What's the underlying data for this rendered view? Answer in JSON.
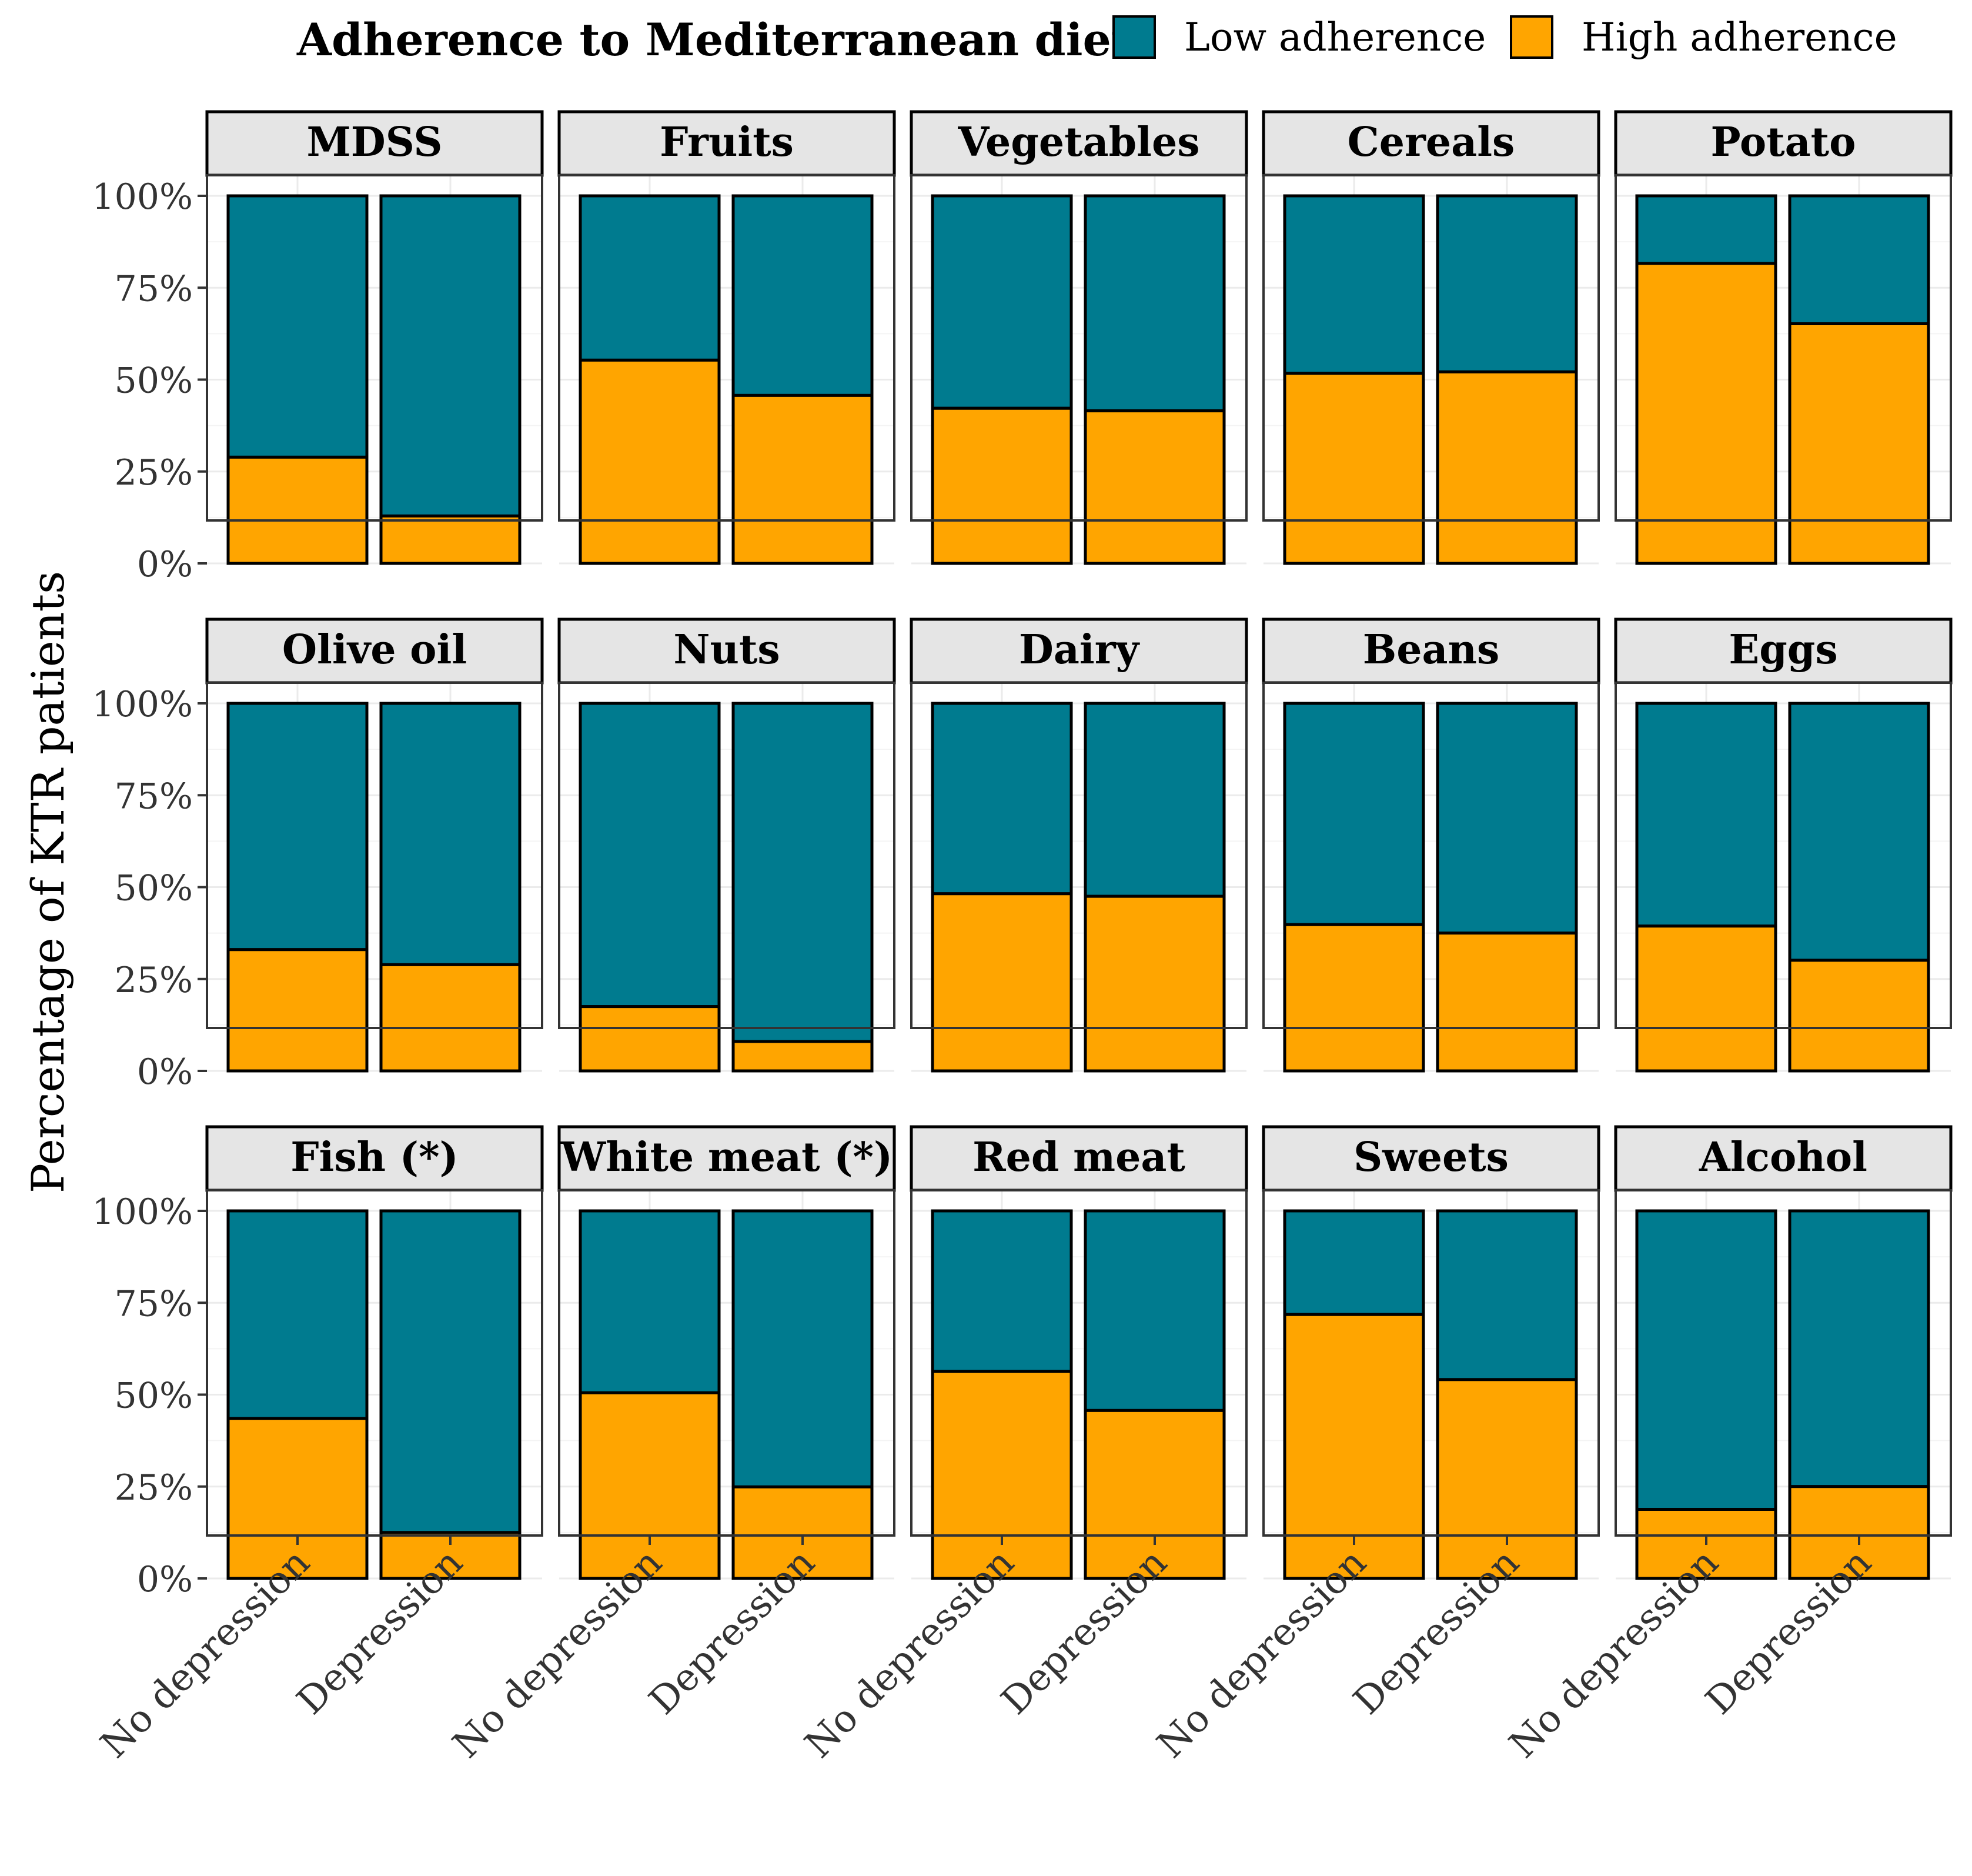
{
  "title": "Adherence to Mediterranean diet",
  "legend": [
    {
      "label": "Low adherence",
      "color": "#007B8F"
    },
    {
      "label": "High adherence",
      "color": "#FFA500"
    }
  ],
  "ylabel": "Percentage of KTR patients",
  "yticks": [
    "0%",
    "25%",
    "50%",
    "75%",
    "100%"
  ],
  "categories": [
    "No depression",
    "Depression"
  ],
  "chart_data": {
    "type": "bar",
    "stacked": true,
    "percent": true,
    "ylim": [
      0,
      100
    ],
    "facets": [
      {
        "name": "MDSS",
        "high": [
          28.9,
          12.9
        ]
      },
      {
        "name": "Fruits",
        "high": [
          55.3,
          45.7
        ]
      },
      {
        "name": "Vegetables",
        "high": [
          42.2,
          41.5
        ]
      },
      {
        "name": "Cereals",
        "high": [
          51.7,
          52.1
        ]
      },
      {
        "name": "Potato",
        "high": [
          81.6,
          65.2
        ]
      },
      {
        "name": "Olive oil",
        "high": [
          33.0,
          28.9
        ]
      },
      {
        "name": "Nuts",
        "high": [
          17.5,
          8.0
        ]
      },
      {
        "name": "Dairy",
        "high": [
          48.2,
          47.5
        ]
      },
      {
        "name": "Beans",
        "high": [
          39.8,
          37.5
        ]
      },
      {
        "name": "Eggs",
        "high": [
          39.4,
          30.1
        ]
      },
      {
        "name": "Fish (*)",
        "high": [
          43.5,
          12.5
        ]
      },
      {
        "name": "White meat (*)",
        "high": [
          50.5,
          24.9
        ]
      },
      {
        "name": "Red meat",
        "high": [
          56.3,
          45.7
        ]
      },
      {
        "name": "Sweets",
        "high": [
          71.8,
          54.1
        ]
      },
      {
        "name": "Alcohol",
        "high": [
          18.8,
          25.0
        ]
      }
    ]
  }
}
